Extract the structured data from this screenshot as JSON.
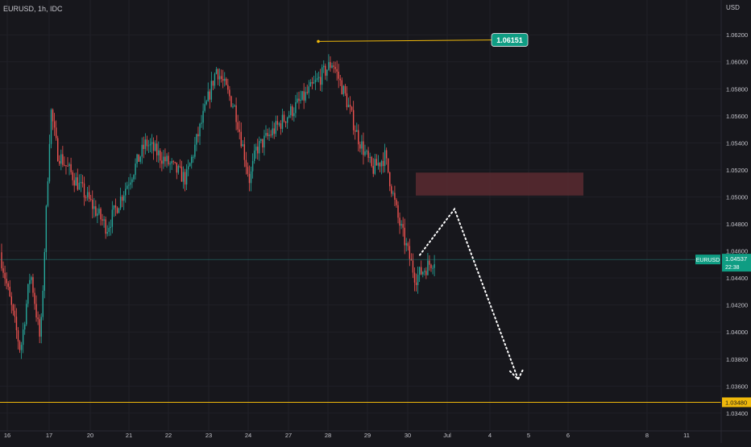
{
  "chart_data": {
    "type": "candlestick",
    "symbol_label": "EURUSD, 1h, IDC",
    "currency_label": "USD",
    "y_ticks": [
      "1.06200",
      "1.06000",
      "1.05800",
      "1.05600",
      "1.05400",
      "1.05200",
      "1.05000",
      "1.04800",
      "1.04600",
      "1.04400",
      "1.04200",
      "1.04000",
      "1.03800",
      "1.03600",
      "1.03400"
    ],
    "y_range": [
      1.0328,
      1.0638
    ],
    "x_ticks": [
      "16",
      "17",
      "20",
      "21",
      "22",
      "23",
      "24",
      "27",
      "28",
      "29",
      "30",
      "Jul",
      "4",
      "5",
      "6",
      "8",
      "11"
    ],
    "x_tick_dates": [
      "2022-06-16",
      "2022-06-17",
      "2022-06-20",
      "2022-06-21",
      "2022-06-22",
      "2022-06-23",
      "2022-06-24",
      "2022-06-27",
      "2022-06-28",
      "2022-06-29",
      "2022-06-30",
      "2022-07-01",
      "2022-07-04",
      "2022-07-05",
      "2022-07-06",
      "2022-07-08",
      "2022-07-11"
    ],
    "current_price": {
      "symbol": "EURUSD",
      "value": "1.04537",
      "countdown": "22:38"
    },
    "high_marker": {
      "label": "1.06151",
      "value": 1.06151
    },
    "support_line": {
      "label": "1.03480",
      "value": 1.0348
    },
    "resistance_zone": {
      "from": 1.0501,
      "to": 1.0518
    },
    "projection": [
      {
        "date": "2022-06-30",
        "price": 1.0457
      },
      {
        "date": "2022-07-01",
        "price": 1.0491
      },
      {
        "date": "2022-07-05",
        "price": 1.0365
      }
    ],
    "price_path": [
      {
        "date": "2022-06-16",
        "price": 1.0459
      },
      {
        "date": "2022-06-16",
        "price": 1.0386
      },
      {
        "date": "2022-06-16",
        "price": 1.0445
      },
      {
        "date": "2022-06-16",
        "price": 1.0392
      },
      {
        "date": "2022-06-17",
        "price": 1.0565
      },
      {
        "date": "2022-06-17",
        "price": 1.0533
      },
      {
        "date": "2022-06-20",
        "price": 1.0477
      },
      {
        "date": "2022-06-21",
        "price": 1.054
      },
      {
        "date": "2022-06-22",
        "price": 1.0513
      },
      {
        "date": "2022-06-23",
        "price": 1.0595
      },
      {
        "date": "2022-06-23",
        "price": 1.0565
      },
      {
        "date": "2022-06-24",
        "price": 1.0512
      },
      {
        "date": "2022-06-24",
        "price": 1.0535
      },
      {
        "date": "2022-06-27",
        "price": 1.0575
      },
      {
        "date": "2022-06-28",
        "price": 1.06
      },
      {
        "date": "2022-06-28",
        "price": 1.0575
      },
      {
        "date": "2022-06-28",
        "price": 1.0545
      },
      {
        "date": "2022-06-29",
        "price": 1.052
      },
      {
        "date": "2022-06-29",
        "price": 1.053
      },
      {
        "date": "2022-06-29",
        "price": 1.0485
      },
      {
        "date": "2022-06-30",
        "price": 1.044
      },
      {
        "date": "2022-06-30",
        "price": 1.0454
      }
    ],
    "colors": {
      "background": "#17171c",
      "grid": "#202027",
      "text": "#c5c5cc",
      "bull": "#26a69a",
      "bear": "#ef5350",
      "accent_line": "#f0b90b",
      "zone": "#5a2a30",
      "price_tag": "#0f9d83"
    }
  }
}
